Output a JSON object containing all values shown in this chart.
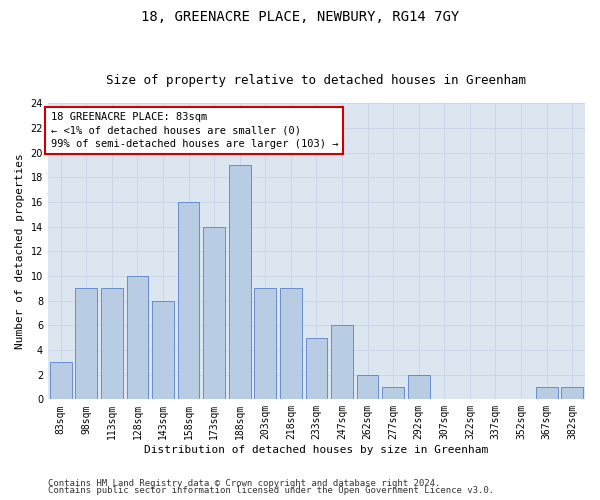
{
  "title": "18, GREENACRE PLACE, NEWBURY, RG14 7GY",
  "subtitle": "Size of property relative to detached houses in Greenham",
  "xlabel": "Distribution of detached houses by size in Greenham",
  "ylabel": "Number of detached properties",
  "categories": [
    "83sqm",
    "98sqm",
    "113sqm",
    "128sqm",
    "143sqm",
    "158sqm",
    "173sqm",
    "188sqm",
    "203sqm",
    "218sqm",
    "233sqm",
    "247sqm",
    "262sqm",
    "277sqm",
    "292sqm",
    "307sqm",
    "322sqm",
    "337sqm",
    "352sqm",
    "367sqm",
    "382sqm"
  ],
  "values": [
    3,
    9,
    9,
    10,
    8,
    16,
    14,
    19,
    9,
    9,
    5,
    6,
    2,
    1,
    2,
    0,
    0,
    0,
    0,
    1,
    1
  ],
  "bar_color": "#b8cce4",
  "bar_edge_color": "#4472c4",
  "grid_color": "#c8d4e8",
  "bg_color": "#dce6f1",
  "annotation_box_text": "18 GREENACRE PLACE: 83sqm\n← <1% of detached houses are smaller (0)\n99% of semi-detached houses are larger (103) →",
  "annotation_box_color": "#cc0000",
  "ylim": [
    0,
    24
  ],
  "yticks": [
    0,
    2,
    4,
    6,
    8,
    10,
    12,
    14,
    16,
    18,
    20,
    22,
    24
  ],
  "footer1": "Contains HM Land Registry data © Crown copyright and database right 2024.",
  "footer2": "Contains public sector information licensed under the Open Government Licence v3.0.",
  "title_fontsize": 10,
  "subtitle_fontsize": 9,
  "xlabel_fontsize": 8,
  "ylabel_fontsize": 8,
  "tick_fontsize": 7,
  "annotation_fontsize": 7.5,
  "footer_fontsize": 6.5
}
